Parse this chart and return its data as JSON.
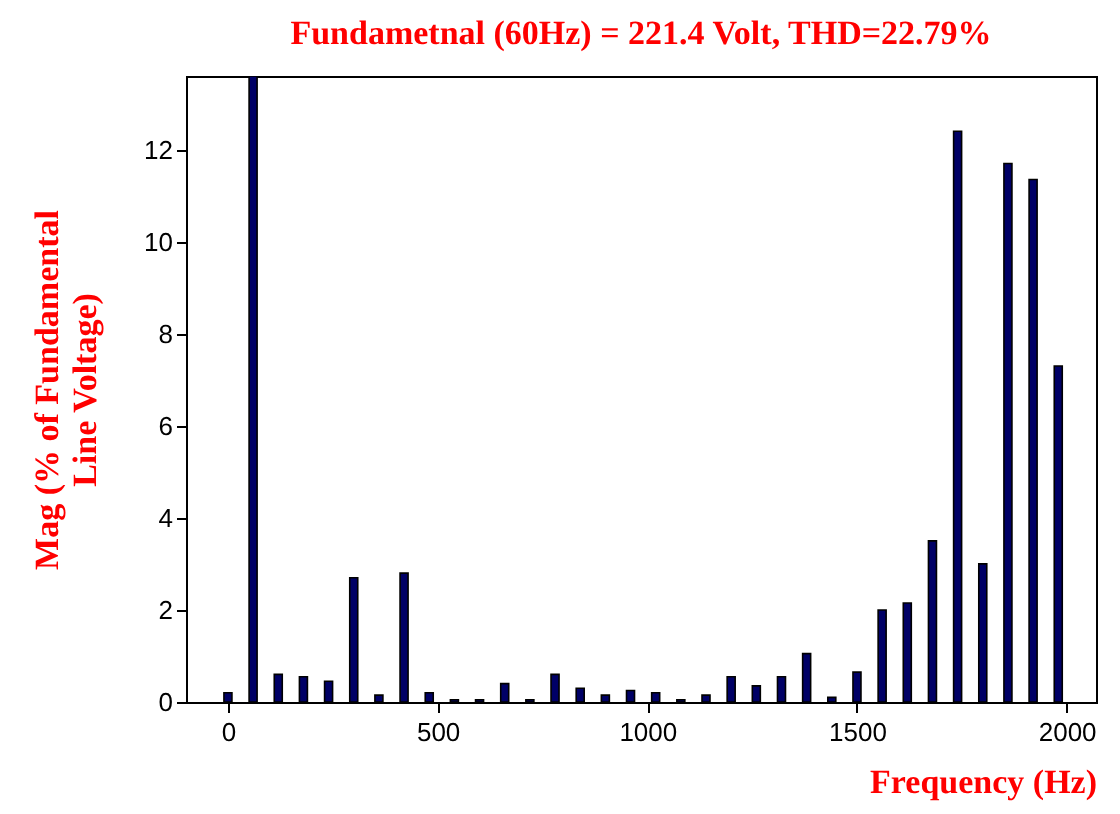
{
  "chart_data": {
    "type": "bar",
    "title": "Fundametnal (60Hz) = 221.4 Volt, THD=22.79%",
    "xlabel": "Frequency (Hz)",
    "ylabel": "Mag (% of Fundamental Line Voltage)",
    "x": [
      0,
      60,
      120,
      180,
      240,
      300,
      360,
      420,
      480,
      540,
      600,
      660,
      720,
      780,
      840,
      900,
      960,
      1020,
      1080,
      1140,
      1200,
      1260,
      1320,
      1380,
      1440,
      1500,
      1560,
      1620,
      1680,
      1740,
      1800,
      1860,
      1920,
      1980
    ],
    "values": [
      0.2,
      13.6,
      0.6,
      0.55,
      0.45,
      2.7,
      0.15,
      2.8,
      0.2,
      0.05,
      0.05,
      0.4,
      0.05,
      0.6,
      0.3,
      0.15,
      0.25,
      0.2,
      0.05,
      0.15,
      0.55,
      0.35,
      0.55,
      1.05,
      0.1,
      0.65,
      2.0,
      2.15,
      3.5,
      12.4,
      3.0,
      11.7,
      11.35,
      7.3
    ],
    "color": "#000066",
    "xlim": [
      -100,
      2070
    ],
    "ylim": [
      0,
      13.6
    ],
    "xticks": [
      0,
      500,
      1000,
      1500,
      2000
    ],
    "yticks": [
      0,
      2,
      4,
      6,
      8,
      10,
      12
    ],
    "grid": false
  }
}
